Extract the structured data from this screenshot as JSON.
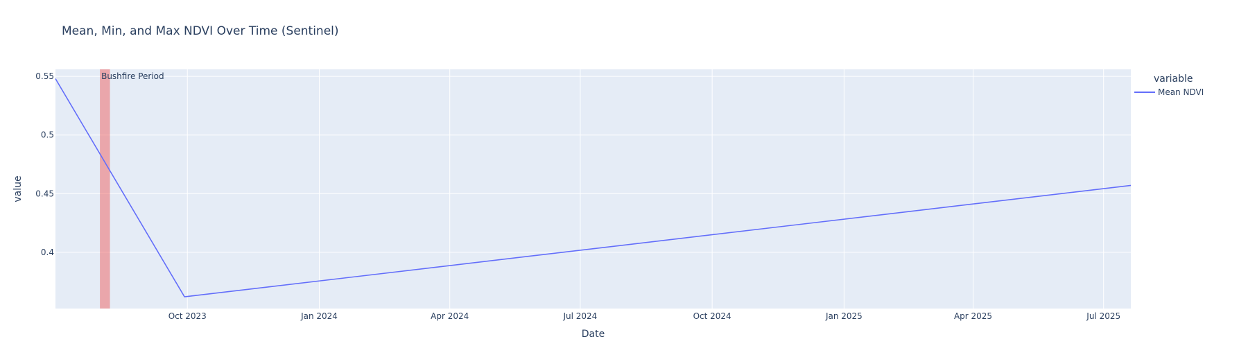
{
  "chart_data": {
    "type": "line",
    "title": "Mean, Min, and Max NDVI Over Time (Sentinel)",
    "xlabel": "Date",
    "ylabel": "value",
    "xlim": [
      "2023-07-01",
      "2025-07-20"
    ],
    "ylim": [
      0.352,
      0.556
    ],
    "x_ticks": [
      {
        "label": "Oct 2023",
        "value": "2023-10-01"
      },
      {
        "label": "Jan 2024",
        "value": "2024-01-01"
      },
      {
        "label": "Apr 2024",
        "value": "2024-04-01"
      },
      {
        "label": "Jul 2024",
        "value": "2024-07-01"
      },
      {
        "label": "Oct 2024",
        "value": "2024-10-01"
      },
      {
        "label": "Jan 2025",
        "value": "2025-01-01"
      },
      {
        "label": "Apr 2025",
        "value": "2025-04-01"
      },
      {
        "label": "Jul 2025",
        "value": "2025-07-01"
      }
    ],
    "y_ticks": [
      {
        "label": "0.4",
        "value": 0.4
      },
      {
        "label": "0.45",
        "value": 0.45
      },
      {
        "label": "0.5",
        "value": 0.5
      },
      {
        "label": "0.55",
        "value": 0.55
      }
    ],
    "grid": true,
    "legend_title": "variable",
    "legend_position": "top-right",
    "series": [
      {
        "name": "Mean NDVI",
        "color": "#636efa",
        "x": [
          "2023-07-01",
          "2023-09-29",
          "2025-07-20"
        ],
        "y": [
          0.548,
          0.362,
          0.457
        ]
      }
    ],
    "shaded_regions": [
      {
        "label": "Bushfire Period",
        "x0": "2023-08-01",
        "x1": "2023-08-08",
        "color": "#ef5350"
      }
    ],
    "colors": {
      "plot_background": "#e5ecf6",
      "grid": "#ffffff",
      "text": "#2a3f5f"
    }
  }
}
